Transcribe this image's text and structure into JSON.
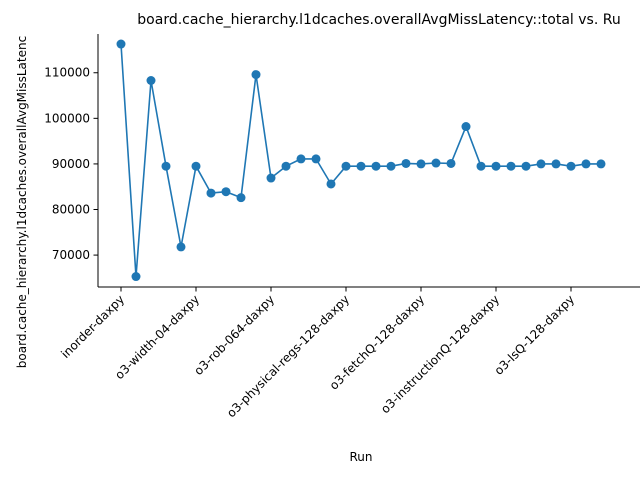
{
  "chart_data": {
    "type": "line",
    "title": "board.cache_hierarchy.l1dcaches.overallAvgMissLatency::total vs. Ru",
    "xlabel": "Run",
    "ylabel": "board.cache_hierarchy.l1dcaches.overallAvgMissLatenc",
    "series_color": "#1f77b4",
    "grid": false,
    "ylim": [
      63000,
      118500
    ],
    "yticks": [
      70000,
      80000,
      90000,
      100000,
      110000
    ],
    "ytick_labels": [
      "70000",
      "80000",
      "90000",
      "100000",
      "110000"
    ],
    "xtick_indices": [
      0,
      5,
      10,
      15,
      20,
      25,
      30
    ],
    "xtick_labels": [
      "inorder-daxpy",
      "o3-width-04-daxpy",
      "o3-rob-064-daxpy",
      "o3-physical-regs-128-daxpy",
      "o3-fetchQ-128-daxpy",
      "o3-instructionQ-128-daxpy",
      "o3-lsQ-128-daxpy"
    ],
    "x_count": 33,
    "values": [
      116300,
      65300,
      108300,
      89500,
      71800,
      89500,
      83600,
      83900,
      82600,
      109600,
      86900,
      89500,
      91100,
      91100,
      85600,
      89500,
      89500,
      89500,
      89500,
      90100,
      90000,
      90200,
      90100,
      98200,
      89500,
      89500,
      89500,
      89500,
      90000,
      90000,
      89500,
      90000,
      90000
    ]
  }
}
